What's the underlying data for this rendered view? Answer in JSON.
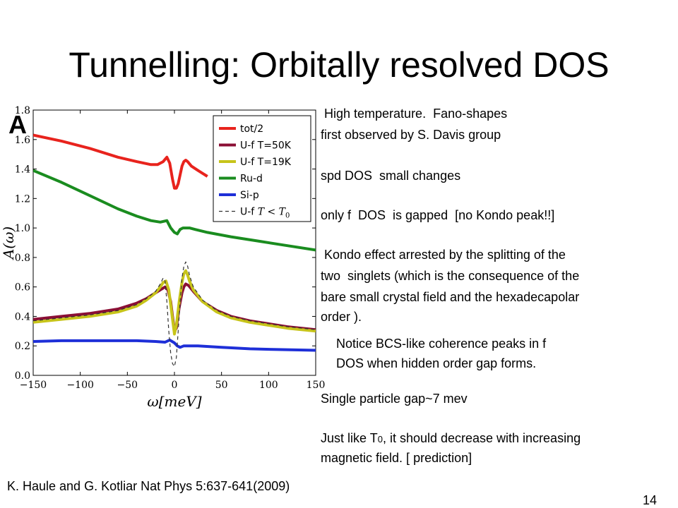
{
  "slide": {
    "title": "Tunnelling: Orbitally resolved DOS",
    "panel_label": "A",
    "notes": [
      " High temperature.  Fano-shapes",
      "first observed by S. Davis group",
      "spd DOS  small changes",
      "only f  DOS  is gapped  [no Kondo peak!!]",
      " Kondo effect arrested by the splitting of the",
      "two  singlets (which is the consequence of the",
      "bare small crystal field and the hexadecapolar",
      "order ).",
      "Notice BCS-like coherence peaks in f",
      "DOS when hidden order gap forms.",
      "Single particle gap~7 mev",
      "Just like T",
      "0",
      ", it should decrease with increasing",
      "magnetic field. [ prediction]"
    ],
    "citation": "K. Haule and G. Kotliar Nat Phys 5:637-641(2009)",
    "page_number": "14"
  },
  "chart_data": {
    "type": "line",
    "xlabel": "ω[meV]",
    "ylabel": "A(ω)",
    "xlim": [
      -150,
      150
    ],
    "ylim": [
      0.0,
      1.8
    ],
    "xticks": [
      "−150",
      "−100",
      "−50",
      "0",
      "50",
      "100",
      "150"
    ],
    "yticks": [
      "0.0",
      "0.2",
      "0.4",
      "0.6",
      "0.8",
      "1.0",
      "1.2",
      "1.4",
      "1.6",
      "1.8"
    ],
    "legend_position": "top-right",
    "series": [
      {
        "name": "tot/2",
        "color": "#e8231d",
        "style": "solid",
        "x": [
          -150,
          -120,
          -90,
          -60,
          -40,
          -25,
          -18,
          -12,
          -8,
          -5,
          -2,
          0,
          2,
          4,
          6,
          8,
          10,
          12,
          14,
          18,
          25,
          30,
          35
        ],
        "y": [
          1.63,
          1.59,
          1.54,
          1.48,
          1.45,
          1.43,
          1.43,
          1.45,
          1.48,
          1.44,
          1.33,
          1.27,
          1.27,
          1.3,
          1.36,
          1.42,
          1.45,
          1.46,
          1.45,
          1.42,
          1.39,
          1.37,
          1.35
        ]
      },
      {
        "name": "U-f T=50K",
        "color": "#8b0f35",
        "style": "solid",
        "x": [
          -150,
          -120,
          -90,
          -60,
          -40,
          -30,
          -20,
          -15,
          -10,
          -7,
          -4,
          -2,
          0,
          2,
          5,
          8,
          10,
          12,
          15,
          20,
          30,
          45,
          60,
          80,
          100,
          120,
          150
        ],
        "y": [
          0.38,
          0.4,
          0.42,
          0.45,
          0.49,
          0.52,
          0.56,
          0.58,
          0.6,
          0.58,
          0.5,
          0.4,
          0.3,
          0.32,
          0.46,
          0.56,
          0.6,
          0.62,
          0.61,
          0.57,
          0.5,
          0.44,
          0.4,
          0.37,
          0.35,
          0.33,
          0.31
        ]
      },
      {
        "name": "U-f T=19K",
        "color": "#c7c41a",
        "style": "solid",
        "x": [
          -150,
          -120,
          -90,
          -60,
          -40,
          -30,
          -20,
          -15,
          -12,
          -9,
          -6,
          -4,
          -2,
          0,
          2,
          5,
          8,
          10,
          12,
          14,
          16,
          20,
          30,
          45,
          60,
          80,
          100,
          120,
          150
        ],
        "y": [
          0.36,
          0.38,
          0.4,
          0.43,
          0.47,
          0.51,
          0.56,
          0.6,
          0.63,
          0.64,
          0.58,
          0.48,
          0.38,
          0.28,
          0.34,
          0.5,
          0.63,
          0.69,
          0.71,
          0.68,
          0.64,
          0.58,
          0.5,
          0.43,
          0.39,
          0.36,
          0.34,
          0.32,
          0.3
        ]
      },
      {
        "name": "Ru-d",
        "color": "#1a8c1f",
        "style": "solid",
        "x": [
          -150,
          -120,
          -90,
          -60,
          -40,
          -25,
          -15,
          -8,
          -4,
          0,
          3,
          6,
          9,
          12,
          16,
          22,
          35,
          60,
          90,
          120,
          150
        ],
        "y": [
          1.39,
          1.31,
          1.22,
          1.13,
          1.08,
          1.05,
          1.04,
          1.05,
          1.0,
          0.97,
          0.96,
          0.99,
          1.0,
          1.0,
          1.0,
          0.99,
          0.97,
          0.94,
          0.91,
          0.88,
          0.85
        ]
      },
      {
        "name": "Si-p",
        "color": "#1e2fd8",
        "style": "solid",
        "x": [
          -150,
          -120,
          -90,
          -60,
          -40,
          -20,
          -10,
          -5,
          0,
          3,
          6,
          10,
          15,
          25,
          50,
          80,
          110,
          150
        ],
        "y": [
          0.23,
          0.235,
          0.235,
          0.235,
          0.235,
          0.23,
          0.225,
          0.24,
          0.22,
          0.2,
          0.19,
          0.2,
          0.2,
          0.2,
          0.19,
          0.18,
          0.175,
          0.17
        ]
      },
      {
        "name": "U-f T<T0",
        "color": "#333333",
        "style": "dashed",
        "x": [
          -150,
          -120,
          -90,
          -60,
          -40,
          -30,
          -20,
          -15,
          -12,
          -10,
          -8,
          -6,
          -4,
          -2,
          0,
          2,
          4,
          6,
          8,
          10,
          12,
          14,
          16,
          20,
          30,
          45,
          60,
          80,
          100,
          120,
          150
        ],
        "y": [
          0.37,
          0.39,
          0.41,
          0.44,
          0.48,
          0.52,
          0.57,
          0.62,
          0.66,
          0.64,
          0.5,
          0.3,
          0.15,
          0.08,
          0.06,
          0.12,
          0.3,
          0.5,
          0.66,
          0.74,
          0.77,
          0.74,
          0.68,
          0.6,
          0.51,
          0.44,
          0.4,
          0.37,
          0.35,
          0.33,
          0.31
        ]
      }
    ]
  }
}
